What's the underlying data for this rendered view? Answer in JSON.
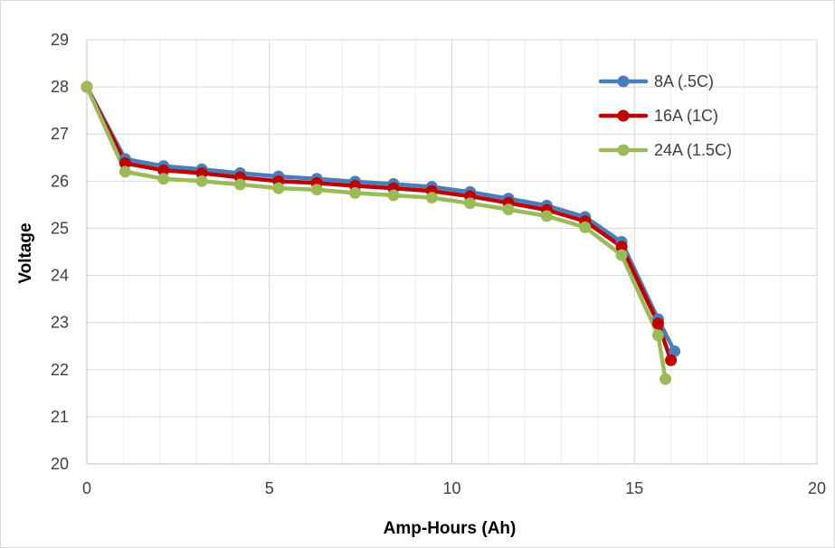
{
  "chart_data": {
    "type": "line",
    "title": "",
    "xlabel": "Amp-Hours (Ah)",
    "ylabel": "Voltage",
    "xlim": [
      0,
      20
    ],
    "ylim": [
      20,
      29
    ],
    "xticks": [
      0,
      5,
      10,
      15,
      20
    ],
    "yticks": [
      20,
      21,
      22,
      23,
      24,
      25,
      26,
      27,
      28,
      29
    ],
    "x_minor_gridlines": [
      1,
      2,
      3,
      4,
      6,
      7,
      8,
      9,
      11,
      12,
      13,
      14,
      16,
      17,
      18,
      19
    ],
    "grid": true,
    "legend_position": "top-right",
    "series": [
      {
        "name": "8A (.5C)",
        "color": "#4a7ebb",
        "x": [
          0,
          1.05,
          2.1,
          3.15,
          4.2,
          5.25,
          6.3,
          7.35,
          8.4,
          9.45,
          10.5,
          11.55,
          12.6,
          13.65,
          14.65,
          15.65,
          16.1
        ],
        "y": [
          28.0,
          26.47,
          26.32,
          26.25,
          26.17,
          26.1,
          26.05,
          25.99,
          25.94,
          25.88,
          25.77,
          25.63,
          25.48,
          25.24,
          24.71,
          23.07,
          22.39
        ]
      },
      {
        "name": "16A (1C)",
        "color": "#c00000",
        "x": [
          0,
          1.05,
          2.1,
          3.15,
          4.2,
          5.25,
          6.3,
          7.35,
          8.4,
          9.45,
          10.5,
          11.55,
          12.6,
          13.65,
          14.65,
          15.65,
          16.0
        ],
        "y": [
          28.0,
          26.38,
          26.23,
          26.17,
          26.08,
          26.0,
          25.96,
          25.9,
          25.85,
          25.79,
          25.68,
          25.54,
          25.39,
          25.15,
          24.61,
          22.98,
          22.2
        ]
      },
      {
        "name": "24A (1.5C)",
        "color": "#9bbb59",
        "x": [
          0,
          1.05,
          2.1,
          3.15,
          4.2,
          5.25,
          6.3,
          7.35,
          8.4,
          9.45,
          10.5,
          11.55,
          12.6,
          13.65,
          14.65,
          15.65,
          15.85
        ],
        "y": [
          28.0,
          26.2,
          26.05,
          26.0,
          25.93,
          25.85,
          25.82,
          25.75,
          25.7,
          25.65,
          25.53,
          25.4,
          25.26,
          25.02,
          24.43,
          22.73,
          21.8
        ]
      }
    ]
  }
}
